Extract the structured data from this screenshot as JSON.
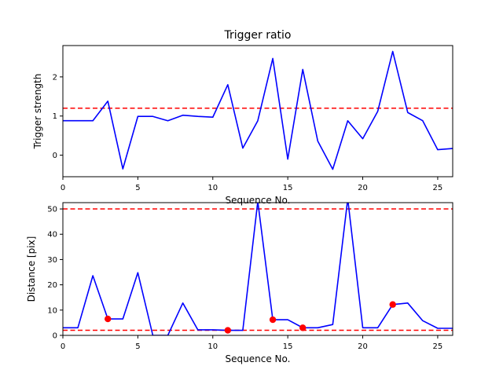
{
  "chart_data": [
    {
      "type": "line",
      "title": "Trigger ratio",
      "xlabel": "Sequence No.",
      "ylabel": "Trigger strength",
      "xlim": [
        0,
        26
      ],
      "ylim": [
        -0.55,
        2.8
      ],
      "xticks": [
        0,
        5,
        10,
        15,
        20,
        25
      ],
      "yticks": [
        0,
        1,
        2
      ],
      "grid": false,
      "series": [
        {
          "color": "#0000ff",
          "x": [
            0,
            1,
            2,
            3,
            4,
            5,
            6,
            7,
            8,
            9,
            10,
            11,
            12,
            13,
            14,
            15,
            16,
            17,
            18,
            19,
            20,
            21,
            22,
            23,
            24,
            25,
            26
          ],
          "values": [
            0.88,
            0.88,
            0.88,
            1.38,
            -0.35,
            0.99,
            0.99,
            0.88,
            1.02,
            0.99,
            0.97,
            1.8,
            0.18,
            0.88,
            2.47,
            -0.1,
            2.19,
            0.36,
            -0.36,
            0.88,
            0.42,
            1.12,
            2.65,
            1.09,
            0.88,
            0.14,
            0.17
          ]
        }
      ],
      "reference_lines": [
        {
          "y": 1.2,
          "color": "#ff0000",
          "style": "dashed"
        }
      ]
    },
    {
      "type": "line",
      "title": "",
      "xlabel": "Sequence No.",
      "ylabel": "Distance [pix]",
      "xlim": [
        0,
        26
      ],
      "ylim": [
        0,
        52.5
      ],
      "xticks": [
        0,
        5,
        10,
        15,
        20,
        25
      ],
      "yticks": [
        0,
        10,
        20,
        30,
        40,
        50
      ],
      "grid": false,
      "series": [
        {
          "color": "#0000ff",
          "x": [
            0,
            1,
            2,
            3,
            4,
            5,
            6,
            7,
            8,
            9,
            10,
            11,
            12,
            13,
            14,
            15,
            16,
            17,
            18,
            19,
            20,
            21,
            22,
            23,
            24,
            25,
            26
          ],
          "values": [
            3,
            3,
            23.6,
            6.5,
            6.5,
            24.8,
            0,
            0,
            12.8,
            2.2,
            2.2,
            2,
            2,
            53,
            6.2,
            6.2,
            3,
            3,
            4.3,
            54,
            3,
            3,
            12.2,
            12.8,
            5.8,
            2.8,
            2.8
          ]
        }
      ],
      "markers": {
        "color": "#ff0000",
        "points": [
          {
            "x": 3,
            "y": 6.5
          },
          {
            "x": 11,
            "y": 2
          },
          {
            "x": 14,
            "y": 6.2
          },
          {
            "x": 16,
            "y": 3
          },
          {
            "x": 22,
            "y": 12.2
          }
        ]
      },
      "reference_lines": [
        {
          "y": 50,
          "color": "#ff0000",
          "style": "dashed"
        },
        {
          "y": 2,
          "color": "#ff0000",
          "style": "dashed"
        }
      ]
    }
  ]
}
